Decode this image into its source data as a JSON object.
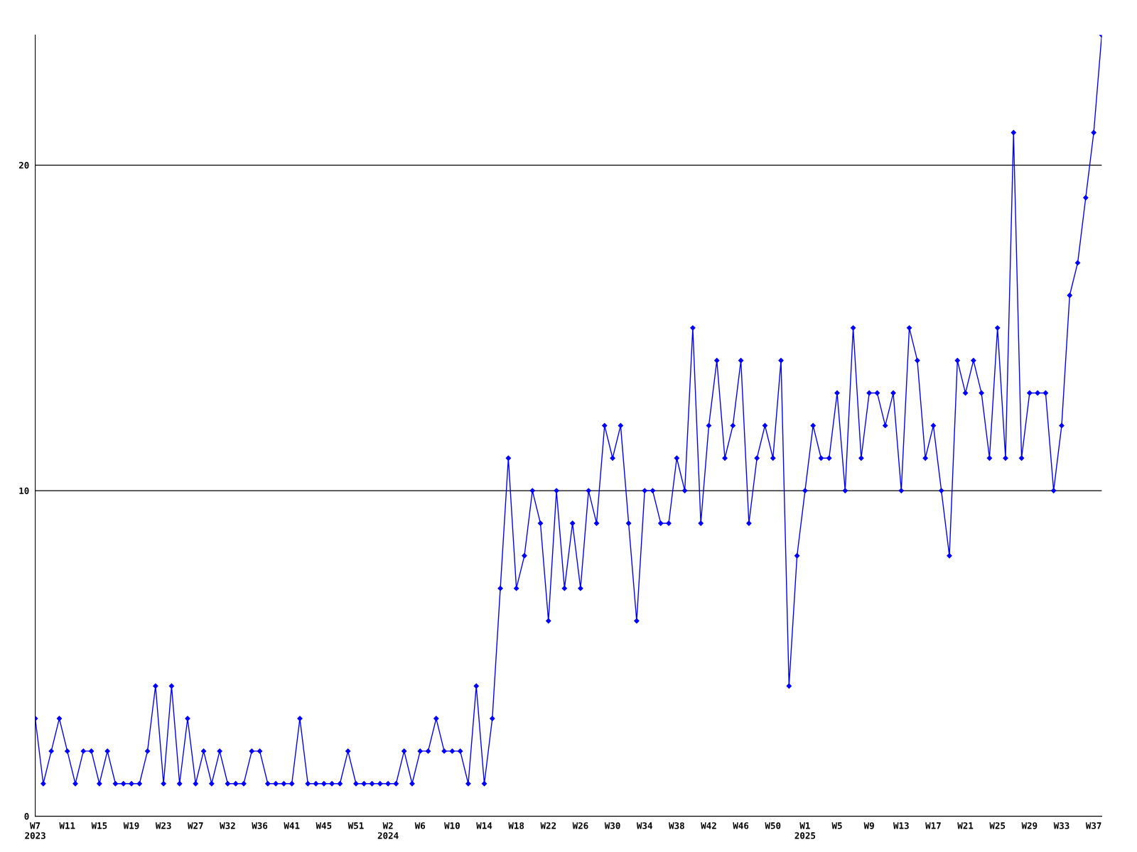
{
  "chart_data": {
    "type": "line",
    "categories": [
      "W7\n2023",
      null,
      null,
      null,
      "W11",
      null,
      null,
      null,
      "W15",
      null,
      null,
      null,
      "W19",
      null,
      null,
      null,
      "W23",
      null,
      null,
      null,
      "W27",
      null,
      null,
      null,
      "W32",
      null,
      null,
      null,
      "W36",
      null,
      null,
      null,
      "W41",
      null,
      null,
      null,
      "W45",
      null,
      null,
      null,
      "W51",
      null,
      null,
      null,
      "W2\n2024",
      null,
      null,
      null,
      "W6",
      null,
      null,
      null,
      "W10",
      null,
      null,
      null,
      "W14",
      null,
      null,
      null,
      "W18",
      null,
      null,
      null,
      "W22",
      null,
      null,
      null,
      "W26",
      null,
      null,
      null,
      "W30",
      null,
      null,
      null,
      "W34",
      null,
      null,
      null,
      "W38",
      null,
      null,
      null,
      "W42",
      null,
      null,
      null,
      "W46",
      null,
      null,
      null,
      "W50",
      null,
      null,
      null,
      "W1\n2025",
      null,
      null,
      null,
      "W5",
      null,
      null,
      null,
      "W9",
      null,
      null,
      null,
      "W13",
      null,
      null,
      null,
      "W17",
      null,
      null,
      null,
      "W21",
      null,
      null,
      null,
      "W25",
      null,
      null,
      null,
      "W29",
      null,
      null,
      null,
      "W33",
      null,
      null,
      null,
      "W37",
      null
    ],
    "series": [
      {
        "color": "#0000ff",
        "values": [
          3,
          1,
          2,
          3,
          2,
          1,
          2,
          2,
          1,
          2,
          1,
          1,
          1,
          1,
          2,
          4,
          1,
          4,
          1,
          3,
          1,
          2,
          1,
          2,
          1,
          1,
          1,
          2,
          2,
          1,
          1,
          1,
          1,
          3,
          1,
          1,
          1,
          1,
          1,
          2,
          1,
          1,
          1,
          1,
          1,
          1,
          2,
          1,
          2,
          2,
          3,
          2,
          2,
          2,
          1,
          4,
          1,
          3,
          7,
          11,
          7,
          8,
          10,
          9,
          6,
          10,
          7,
          9,
          7,
          10,
          9,
          12,
          11,
          12,
          9,
          6,
          10,
          10,
          9,
          9,
          11,
          10,
          15,
          9,
          12,
          14,
          11,
          12,
          14,
          9,
          11,
          12,
          11,
          14,
          4,
          8,
          10,
          12,
          11,
          11,
          13,
          10,
          15,
          11,
          13,
          13,
          12,
          13,
          10,
          15,
          14,
          11,
          12,
          10,
          8,
          14,
          13,
          14,
          13,
          11,
          15,
          11,
          21,
          11,
          13,
          13,
          13,
          10,
          12,
          16,
          17,
          19,
          21,
          24
        ]
      }
    ],
    "ylim": [
      0,
      24
    ],
    "yticks": [
      0,
      10,
      20
    ],
    "grid": "y",
    "marker": "diamond",
    "line_style": "solid",
    "legend": false
  }
}
